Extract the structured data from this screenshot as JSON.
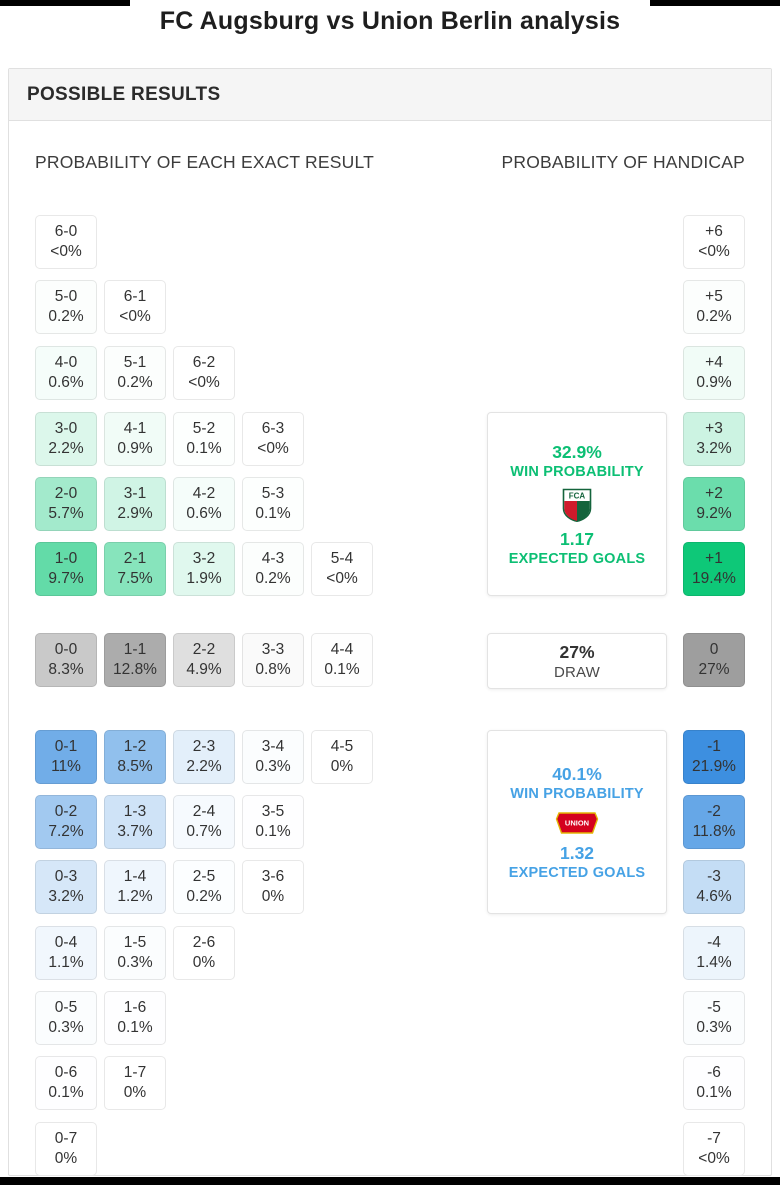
{
  "page_title": "FC Augsburg vs Union Berlin analysis",
  "panel": {
    "header": "POSSIBLE RESULTS",
    "left_heading": "PROBABILITY OF EACH EXACT RESULT",
    "right_heading": "PROBABILITY OF HANDICAP"
  },
  "colors": {
    "home_base": "#0ec878",
    "draw_base": "#9e9e9e",
    "away_base": "#3d8fe0",
    "home_text": "#0cbf74",
    "away_text": "#46a2e5"
  },
  "exact_results": {
    "home_rows": [
      [
        {
          "score": "6-0",
          "prob": "<0%"
        }
      ],
      [
        {
          "score": "5-0",
          "prob": "0.2%"
        },
        {
          "score": "6-1",
          "prob": "<0%"
        }
      ],
      [
        {
          "score": "4-0",
          "prob": "0.6%"
        },
        {
          "score": "5-1",
          "prob": "0.2%"
        },
        {
          "score": "6-2",
          "prob": "<0%"
        }
      ],
      [
        {
          "score": "3-0",
          "prob": "2.2%"
        },
        {
          "score": "4-1",
          "prob": "0.9%"
        },
        {
          "score": "5-2",
          "prob": "0.1%"
        },
        {
          "score": "6-3",
          "prob": "<0%"
        }
      ],
      [
        {
          "score": "2-0",
          "prob": "5.7%"
        },
        {
          "score": "3-1",
          "prob": "2.9%"
        },
        {
          "score": "4-2",
          "prob": "0.6%"
        },
        {
          "score": "5-3",
          "prob": "0.1%"
        }
      ],
      [
        {
          "score": "1-0",
          "prob": "9.7%"
        },
        {
          "score": "2-1",
          "prob": "7.5%"
        },
        {
          "score": "3-2",
          "prob": "1.9%"
        },
        {
          "score": "4-3",
          "prob": "0.2%"
        },
        {
          "score": "5-4",
          "prob": "<0%"
        }
      ]
    ],
    "draw_row": [
      {
        "score": "0-0",
        "prob": "8.3%"
      },
      {
        "score": "1-1",
        "prob": "12.8%"
      },
      {
        "score": "2-2",
        "prob": "4.9%"
      },
      {
        "score": "3-3",
        "prob": "0.8%"
      },
      {
        "score": "4-4",
        "prob": "0.1%"
      }
    ],
    "away_rows": [
      [
        {
          "score": "0-1",
          "prob": "11%"
        },
        {
          "score": "1-2",
          "prob": "8.5%"
        },
        {
          "score": "2-3",
          "prob": "2.2%"
        },
        {
          "score": "3-4",
          "prob": "0.3%"
        },
        {
          "score": "4-5",
          "prob": "0%"
        }
      ],
      [
        {
          "score": "0-2",
          "prob": "7.2%"
        },
        {
          "score": "1-3",
          "prob": "3.7%"
        },
        {
          "score": "2-4",
          "prob": "0.7%"
        },
        {
          "score": "3-5",
          "prob": "0.1%"
        }
      ],
      [
        {
          "score": "0-3",
          "prob": "3.2%"
        },
        {
          "score": "1-4",
          "prob": "1.2%"
        },
        {
          "score": "2-5",
          "prob": "0.2%"
        },
        {
          "score": "3-6",
          "prob": "0%"
        }
      ],
      [
        {
          "score": "0-4",
          "prob": "1.1%"
        },
        {
          "score": "1-5",
          "prob": "0.3%"
        },
        {
          "score": "2-6",
          "prob": "0%"
        }
      ],
      [
        {
          "score": "0-5",
          "prob": "0.3%"
        },
        {
          "score": "1-6",
          "prob": "0.1%"
        }
      ],
      [
        {
          "score": "0-6",
          "prob": "0.1%"
        },
        {
          "score": "1-7",
          "prob": "0%"
        }
      ],
      [
        {
          "score": "0-7",
          "prob": "0%"
        }
      ]
    ]
  },
  "handicap": {
    "home": [
      {
        "line": "+6",
        "prob": "<0%"
      },
      {
        "line": "+5",
        "prob": "0.2%"
      },
      {
        "line": "+4",
        "prob": "0.9%"
      },
      {
        "line": "+3",
        "prob": "3.2%"
      },
      {
        "line": "+2",
        "prob": "9.2%"
      },
      {
        "line": "+1",
        "prob": "19.4%"
      }
    ],
    "draw": {
      "line": "0",
      "prob": "27%"
    },
    "away": [
      {
        "line": "-1",
        "prob": "21.9%"
      },
      {
        "line": "-2",
        "prob": "11.8%"
      },
      {
        "line": "-3",
        "prob": "4.6%"
      },
      {
        "line": "-4",
        "prob": "1.4%"
      },
      {
        "line": "-5",
        "prob": "0.3%"
      },
      {
        "line": "-6",
        "prob": "0.1%"
      },
      {
        "line": "-7",
        "prob": "<0%"
      }
    ]
  },
  "summary": {
    "home": {
      "win_probability": "32.9%",
      "win_label": "WIN PROBABILITY",
      "expected_goals": "1.17",
      "eg_label": "EXPECTED GOALS",
      "logo_text": "FCA"
    },
    "draw": {
      "probability": "27%",
      "label": "DRAW"
    },
    "away": {
      "win_probability": "40.1%",
      "win_label": "WIN PROBABILITY",
      "expected_goals": "1.32",
      "eg_label": "EXPECTED GOALS",
      "logo_text": "UNION"
    }
  }
}
